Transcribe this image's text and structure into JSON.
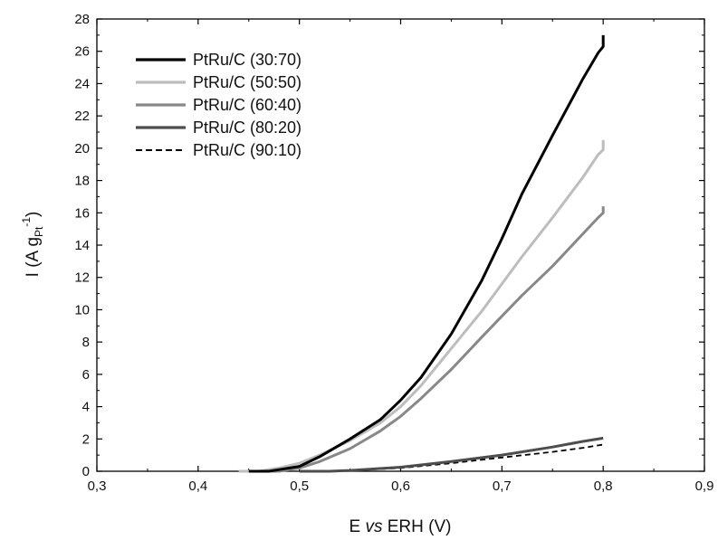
{
  "chart_data": {
    "type": "line",
    "xlabel_parts": {
      "pre": "E ",
      "ital": "vs",
      "post": " ERH (V)"
    },
    "ylabel_parts": {
      "pre": "I (A g",
      "sub": "Pt",
      "sup": "-1",
      "post": ")"
    },
    "xlim": [
      0.3,
      0.9
    ],
    "ylim": [
      0,
      28
    ],
    "x_ticks": [
      0.3,
      0.4,
      0.5,
      0.6,
      0.7,
      0.8,
      0.9
    ],
    "x_tick_labels": [
      "0,3",
      "0,4",
      "0,5",
      "0,6",
      "0,7",
      "0,8",
      "0,9"
    ],
    "y_ticks": [
      0,
      2,
      4,
      6,
      8,
      10,
      12,
      14,
      16,
      18,
      20,
      22,
      24,
      26,
      28
    ],
    "y_tick_labels": [
      "0",
      "2",
      "4",
      "6",
      "8",
      "10",
      "12",
      "14",
      "16",
      "18",
      "20",
      "22",
      "24",
      "26",
      "28"
    ],
    "grid": false,
    "legend_position": "top-left",
    "series": [
      {
        "name": "PtRu/C (30:70)",
        "color": "#000000",
        "dash": "solid",
        "x": [
          0.45,
          0.47,
          0.48,
          0.5,
          0.52,
          0.55,
          0.58,
          0.6,
          0.62,
          0.65,
          0.68,
          0.7,
          0.72,
          0.75,
          0.78,
          0.795,
          0.8,
          0.8
        ],
        "y": [
          0,
          0,
          0.1,
          0.3,
          0.9,
          2.0,
          3.2,
          4.4,
          5.8,
          8.5,
          11.8,
          14.4,
          17.2,
          20.8,
          24.3,
          25.9,
          26.3,
          27.0
        ]
      },
      {
        "name": "PtRu/C (50:50)",
        "color": "#bdbdbd",
        "dash": "solid",
        "x": [
          0.44,
          0.46,
          0.48,
          0.5,
          0.52,
          0.55,
          0.58,
          0.6,
          0.62,
          0.65,
          0.68,
          0.7,
          0.72,
          0.75,
          0.78,
          0.795,
          0.8,
          0.8
        ],
        "y": [
          0,
          0,
          0.2,
          0.5,
          1.0,
          1.9,
          3.0,
          4.0,
          5.3,
          7.6,
          9.9,
          11.6,
          13.3,
          15.7,
          18.2,
          19.6,
          19.9,
          20.5
        ]
      },
      {
        "name": "PtRu/C (60:40)",
        "color": "#888888",
        "dash": "solid",
        "x": [
          0.46,
          0.48,
          0.5,
          0.52,
          0.55,
          0.58,
          0.6,
          0.62,
          0.65,
          0.68,
          0.7,
          0.72,
          0.75,
          0.78,
          0.795,
          0.8,
          0.8
        ],
        "y": [
          0,
          0,
          0.2,
          0.6,
          1.4,
          2.5,
          3.4,
          4.5,
          6.3,
          8.3,
          9.6,
          10.9,
          12.7,
          14.7,
          15.7,
          16.0,
          16.4
        ]
      },
      {
        "name": "PtRu/C (80:20)",
        "color": "#4d4d4d",
        "dash": "solid",
        "x": [
          0.5,
          0.53,
          0.55,
          0.6,
          0.65,
          0.7,
          0.75,
          0.78,
          0.8
        ],
        "y": [
          0,
          0,
          0.05,
          0.25,
          0.6,
          1.0,
          1.5,
          1.85,
          2.05
        ]
      },
      {
        "name": "PtRu/C (90:10)",
        "color": "#000000",
        "dash": "dashed",
        "x": [
          0.5,
          0.53,
          0.55,
          0.6,
          0.65,
          0.7,
          0.75,
          0.78,
          0.8
        ],
        "y": [
          0,
          0,
          0.05,
          0.2,
          0.5,
          0.85,
          1.2,
          1.45,
          1.65
        ]
      }
    ]
  }
}
